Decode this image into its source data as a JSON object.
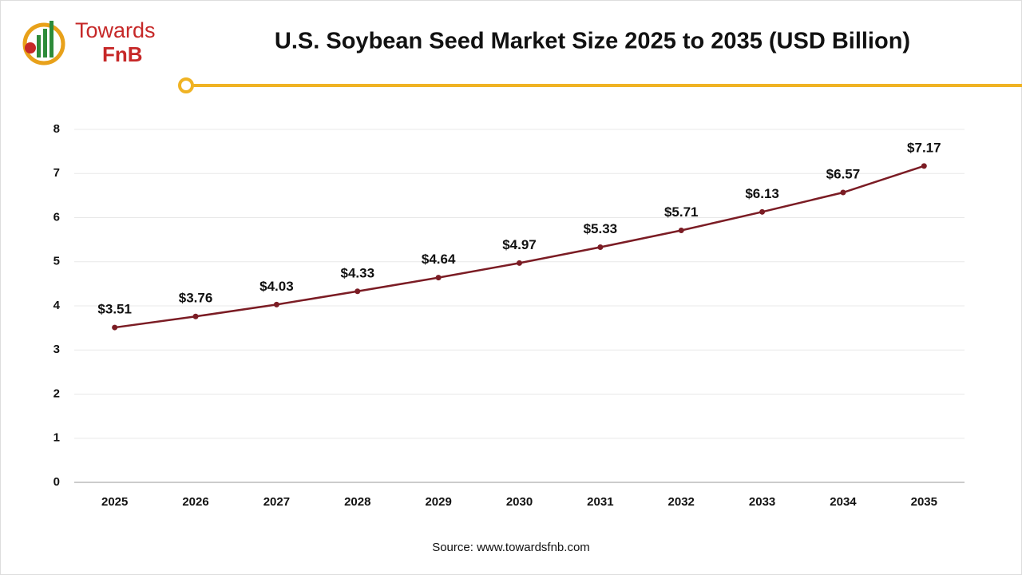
{
  "logo": {
    "line1": "Towards",
    "line2": "FnB"
  },
  "source": "Source: www.towardsfnb.com",
  "chart_data": {
    "type": "line",
    "title": "U.S. Soybean Seed Market Size 2025 to 2035 (USD Billion)",
    "categories": [
      "2025",
      "2026",
      "2027",
      "2028",
      "2029",
      "2030",
      "2031",
      "2032",
      "2033",
      "2034",
      "2035"
    ],
    "values": [
      3.51,
      3.76,
      4.03,
      4.33,
      4.64,
      4.97,
      5.33,
      5.71,
      6.13,
      6.57,
      7.17
    ],
    "value_labels": [
      "$3.51",
      "$3.76",
      "$4.03",
      "$4.33",
      "$4.64",
      "$4.97",
      "$5.33",
      "$5.71",
      "$6.13",
      "$6.57",
      "$7.17"
    ],
    "color": "#7b1c24",
    "ylim": [
      0,
      8
    ],
    "yticks": [
      0,
      1,
      2,
      3,
      4,
      5,
      6,
      7,
      8
    ],
    "grid": true
  }
}
